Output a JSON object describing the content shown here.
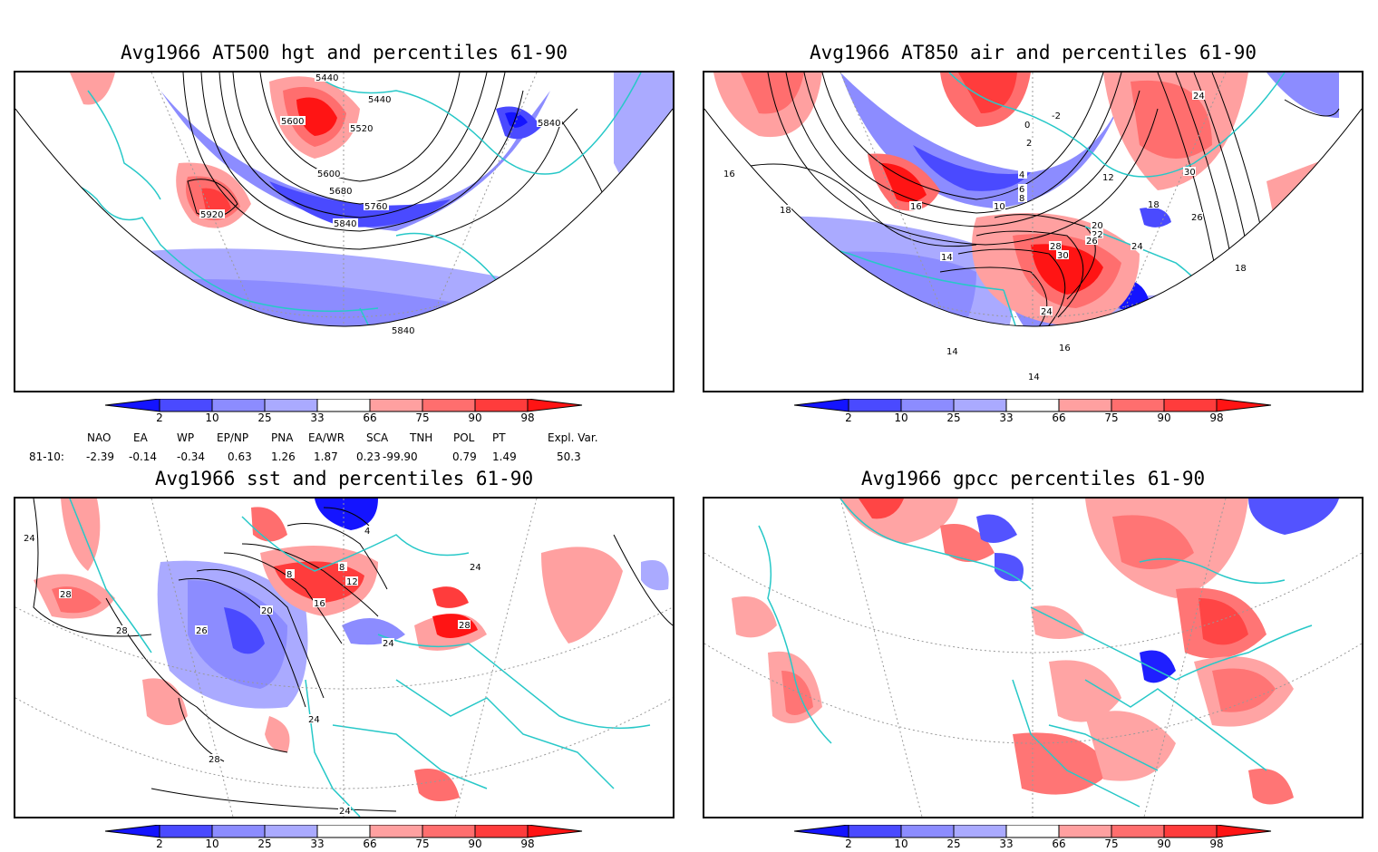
{
  "panels": [
    {
      "title": "Avg1966 AT500 hgt and percentiles 61-90",
      "contour_labels": [
        "5440",
        "5440",
        "5600",
        "5520",
        "5840",
        "5600",
        "5680",
        "5760",
        "5840",
        "5920",
        "5840"
      ]
    },
    {
      "title": "Avg1966 AT850 air and percentiles 61-90",
      "contour_labels": [
        "-2",
        "0",
        "2",
        "4",
        "6",
        "8",
        "10",
        "12",
        "14",
        "16",
        "16",
        "18",
        "18",
        "20",
        "22",
        "24",
        "24",
        "26",
        "28",
        "30",
        "30",
        "14",
        "14",
        "16",
        "18",
        "26",
        "24"
      ]
    },
    {
      "title": "Avg1966 sst and percentiles 61-90",
      "contour_labels": [
        "24",
        "28",
        "28",
        "26",
        "20",
        "16",
        "12",
        "8",
        "8",
        "4",
        "24",
        "24",
        "28",
        "24",
        "28",
        "24"
      ]
    },
    {
      "title": "Avg1966 gpcc percentiles 61-90",
      "contour_labels": []
    }
  ],
  "colorbar": {
    "ticks": [
      "2",
      "10",
      "25",
      "33",
      "66",
      "75",
      "90",
      "98"
    ],
    "colors": {
      "deep_blue": "#1414ff",
      "mid_blue": "#4a4aff",
      "light_blue": "#8c8cff",
      "pale_blue": "#aaaaff",
      "pale_red": "#ffa0a0",
      "light_red": "#ff6e6e",
      "mid_red": "#ff3c3c",
      "deep_red": "#ff1414"
    }
  },
  "indices": {
    "headers": [
      "NAO",
      "EA",
      "WP",
      "EP/NP",
      "PNA",
      "EA/WR",
      "SCA",
      "TNH",
      "POL",
      "PT",
      "Expl. Var."
    ],
    "row_label": "81-10:",
    "values": [
      "-2.39",
      "-0.14",
      "-0.34",
      "0.63",
      "1.26",
      "1.87",
      "0.23",
      "-99.90",
      "0.79",
      "1.49",
      "50.3"
    ]
  },
  "map_colors": {
    "coast": "#27c8c8",
    "contour": "#000000",
    "grid": "#999999"
  }
}
